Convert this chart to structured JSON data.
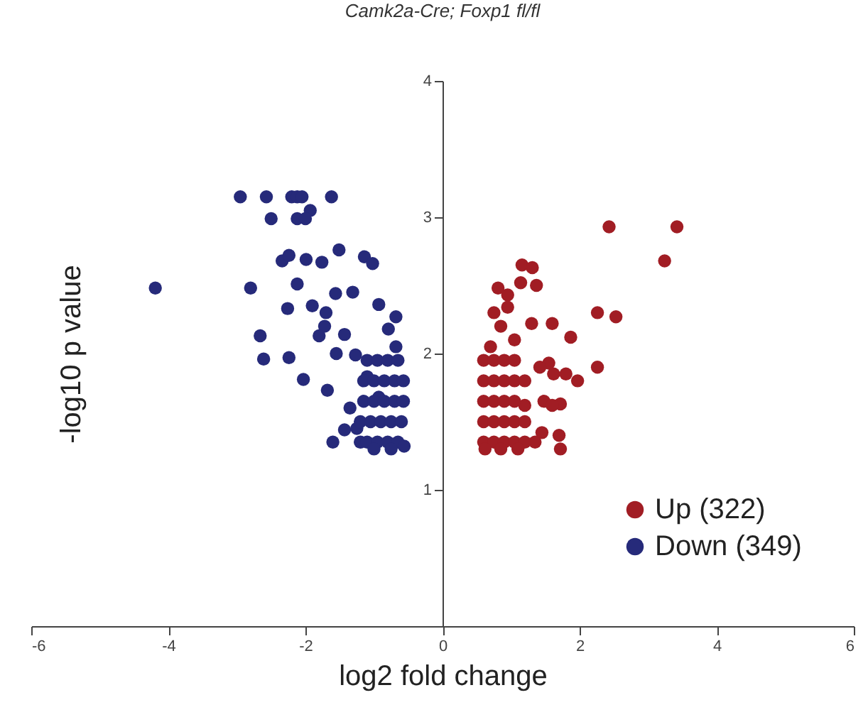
{
  "chart_data": {
    "type": "scatter",
    "title": "Camk2a-Cre; Foxp1 fl/fl",
    "xlabel": "log2 fold change",
    "ylabel": "-log10 p value",
    "xlim": [
      -6,
      6
    ],
    "xticks": [
      -6,
      -4,
      -2,
      0,
      2,
      4,
      6
    ],
    "ylim": [
      0,
      4
    ],
    "yticks": [
      1,
      2,
      3,
      4
    ],
    "grid": false,
    "legend": "bottom right",
    "marker": "circle",
    "series": [
      {
        "name": "Up (322)",
        "color": "#a11d24",
        "x": [
          2.43,
          3.42,
          3.24,
          2.26,
          2.53,
          2.26,
          1.6,
          1.87,
          1.97,
          1.16,
          1.31,
          1.14,
          0.81,
          0.95,
          1.37,
          0.95,
          1.3,
          0.75,
          0.85,
          1.05,
          0.7,
          1.55,
          1.62,
          1.8,
          1.42,
          1.48,
          1.72,
          1.6,
          1.7,
          1.72,
          1.45,
          1.35,
          1.2,
          0.6,
          0.75,
          0.9,
          1.05,
          0.6,
          0.75,
          0.9,
          1.05,
          1.2,
          0.6,
          0.75,
          0.9,
          1.05,
          0.6,
          0.75,
          0.9,
          1.05,
          1.2,
          0.6,
          0.75,
          0.9,
          1.05,
          1.2,
          0.62,
          0.85,
          1.1
        ],
        "values": [
          2.93,
          2.93,
          2.68,
          2.3,
          2.27,
          1.9,
          2.22,
          2.12,
          1.8,
          2.65,
          2.63,
          2.52,
          2.48,
          2.43,
          2.5,
          2.34,
          2.22,
          2.3,
          2.2,
          2.1,
          2.05,
          1.93,
          1.85,
          1.85,
          1.9,
          1.65,
          1.63,
          1.62,
          1.4,
          1.3,
          1.42,
          1.35,
          1.62,
          1.95,
          1.95,
          1.95,
          1.95,
          1.8,
          1.8,
          1.8,
          1.8,
          1.8,
          1.65,
          1.65,
          1.65,
          1.65,
          1.5,
          1.5,
          1.5,
          1.5,
          1.5,
          1.35,
          1.35,
          1.35,
          1.35,
          1.35,
          1.3,
          1.3,
          1.3
        ]
      },
      {
        "name": "Down (349)",
        "color": "#262a7a",
        "x": [
          -4.19,
          -2.95,
          -2.57,
          -2.2,
          -2.12,
          -2.05,
          -1.62,
          -2.5,
          -2.12,
          -1.93,
          -2.0,
          -2.34,
          -2.24,
          -1.99,
          -1.76,
          -1.51,
          -1.14,
          -1.02,
          -2.8,
          -2.12,
          -2.26,
          -1.7,
          -1.56,
          -1.31,
          -0.93,
          -0.68,
          -2.66,
          -2.61,
          -2.24,
          -2.03,
          -1.72,
          -1.43,
          -1.27,
          -0.79,
          -0.68,
          -1.68,
          -1.43,
          -1.6,
          -1.1,
          -0.93,
          -1.9,
          -1.8,
          -1.55,
          -1.35,
          -1.25,
          -1.2,
          -1.1,
          -0.95,
          -0.8,
          -0.65,
          -1.15,
          -1.0,
          -0.85,
          -0.7,
          -0.57,
          -1.15,
          -1.0,
          -0.85,
          -0.7,
          -0.57,
          -1.2,
          -1.05,
          -0.9,
          -0.75,
          -0.6,
          -1.1,
          -0.95,
          -0.8,
          -0.65,
          -0.56,
          -1.0,
          -0.75
        ],
        "values": [
          2.48,
          3.15,
          3.15,
          3.15,
          3.15,
          3.15,
          3.15,
          2.99,
          2.99,
          3.05,
          2.99,
          2.68,
          2.72,
          2.69,
          2.67,
          2.76,
          2.71,
          2.66,
          2.48,
          2.51,
          2.33,
          2.3,
          2.44,
          2.45,
          2.36,
          2.27,
          2.13,
          1.96,
          1.97,
          1.81,
          2.2,
          2.14,
          1.99,
          2.18,
          2.05,
          1.73,
          1.44,
          1.35,
          1.83,
          1.68,
          2.35,
          2.13,
          2.0,
          1.6,
          1.45,
          1.35,
          1.95,
          1.95,
          1.95,
          1.95,
          1.8,
          1.8,
          1.8,
          1.8,
          1.8,
          1.65,
          1.65,
          1.65,
          1.65,
          1.65,
          1.5,
          1.5,
          1.5,
          1.5,
          1.5,
          1.35,
          1.35,
          1.35,
          1.35,
          1.32,
          1.3,
          1.3
        ]
      }
    ]
  }
}
